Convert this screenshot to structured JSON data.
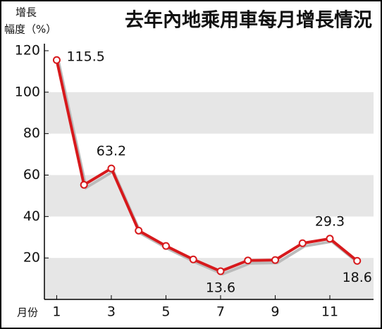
{
  "chart_data": {
    "type": "line",
    "title": "去年內地乘用車每月增長情況",
    "y_label": [
      "增長",
      "幅度（%）"
    ],
    "x_label": "月份",
    "x": [
      1,
      2,
      3,
      4,
      5,
      6,
      7,
      8,
      9,
      10,
      11,
      12
    ],
    "series": [
      {
        "name": "增長幅度",
        "color": "#d7191c",
        "values": [
          115.5,
          55.3,
          63.2,
          33.2,
          25.8,
          19.3,
          13.6,
          18.8,
          19.0,
          27.1,
          29.3,
          18.6
        ],
        "value_labels": [
          "115.5",
          null,
          "63.2",
          null,
          null,
          null,
          "13.6",
          null,
          null,
          null,
          "29.3",
          "18.6"
        ]
      }
    ],
    "xlim": [
      0.55,
      12.6
    ],
    "xticks": [
      1,
      3,
      5,
      7,
      9,
      11
    ],
    "ylim": [
      0,
      120
    ],
    "yticks": [
      20,
      40,
      60,
      80,
      100,
      120
    ],
    "grid": "bands",
    "band_color": "#e6e6e6"
  }
}
